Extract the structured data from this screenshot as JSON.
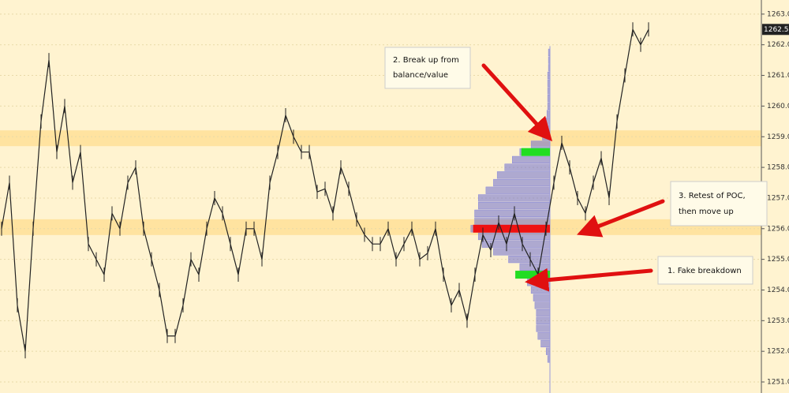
{
  "chart_data": {
    "type": "line",
    "series": [
      {
        "name": "Price",
        "color": "#222222",
        "values": [
          1256.0,
          1257.5,
          1253.5,
          1252.0,
          1256.0,
          1259.5,
          1261.5,
          1258.5,
          1260.0,
          1257.5,
          1258.5,
          1255.5,
          1255.0,
          1254.5,
          1256.5,
          1256.0,
          1257.5,
          1258.0,
          1256.0,
          1255.0,
          1254.0,
          1252.5,
          1252.5,
          1253.5,
          1255.0,
          1254.5,
          1256.0,
          1257.0,
          1256.5,
          1255.5,
          1254.5,
          1256.0,
          1256.0,
          1255.0,
          1257.5,
          1258.5,
          1259.7,
          1259.0,
          1258.5,
          1258.5,
          1257.2,
          1257.3,
          1256.5,
          1258.0,
          1257.3,
          1256.3,
          1255.8,
          1255.5,
          1255.5,
          1256.0,
          1255.0,
          1255.5,
          1256.0,
          1255.0,
          1255.2,
          1256.0,
          1254.5,
          1253.5,
          1254.0,
          1253.0,
          1254.5,
          1255.8,
          1255.3,
          1256.2,
          1255.5,
          1256.5,
          1255.5,
          1255.0,
          1254.5,
          1256.0,
          1257.5,
          1258.8,
          1258.0,
          1257.0,
          1256.5,
          1257.5,
          1258.3,
          1257.0,
          1259.5,
          1261.0,
          1262.5,
          1262.0,
          1262.5
        ]
      }
    ],
    "ylim": [
      1250.64,
      1263.46
    ],
    "yticks": [
      {
        "value": 1251,
        "label": "1251.0"
      },
      {
        "value": 1252,
        "label": "1252.0"
      },
      {
        "value": 1253,
        "label": "1253.0"
      },
      {
        "value": 1254,
        "label": "1254.0"
      },
      {
        "value": 1255,
        "label": "1255.0"
      },
      {
        "value": 1256,
        "label": "1256.0"
      },
      {
        "value": 1257,
        "label": "1257.0"
      },
      {
        "value": 1258,
        "label": "1258.0"
      },
      {
        "value": 1259,
        "label": "1259.0"
      },
      {
        "value": 1260,
        "label": "1260.0"
      },
      {
        "value": 1261,
        "label": "1261.0"
      },
      {
        "value": 1262,
        "label": "1262.0"
      },
      {
        "value": 1263,
        "label": "1263.0"
      }
    ],
    "grid": true,
    "last_price": {
      "value": 1262.5,
      "label": "1262.50"
    },
    "bands": [
      {
        "value": 1258.95,
        "color": "#ffe3a0"
      },
      {
        "value": 1256.05,
        "color": "#ffe3a0"
      }
    ],
    "profile": {
      "color": "#6b6bd0",
      "levels": [
        1261.75,
        1261.5,
        1261.25,
        1261.0,
        1260.75,
        1260.5,
        1260.25,
        1260.0,
        1259.75,
        1259.5,
        1259.25,
        1259.0,
        1258.75,
        1258.5,
        1258.25,
        1258.0,
        1257.75,
        1257.5,
        1257.25,
        1257.0,
        1256.75,
        1256.5,
        1256.25,
        1256.0,
        1255.75,
        1255.5,
        1255.25,
        1255.0,
        1254.75,
        1254.5,
        1254.25,
        1254.0,
        1253.75,
        1253.5,
        1253.25,
        1253.0,
        1252.75,
        1252.5,
        1252.25,
        1252.0,
        1251.75
      ],
      "volumes": [
        2,
        2,
        2,
        3,
        3,
        3,
        3,
        3,
        4,
        5,
        7,
        10,
        25,
        40,
        50,
        60,
        70,
        75,
        85,
        95,
        95,
        100,
        100,
        105,
        95,
        90,
        75,
        55,
        40,
        35,
        30,
        25,
        22,
        20,
        18,
        18,
        18,
        16,
        12,
        5,
        3
      ],
      "xlim": [
        0,
        110
      ]
    },
    "key_levels": [
      {
        "value": 1258.5,
        "size": 38,
        "color": "#22dd22"
      },
      {
        "value": 1256.0,
        "size": 102,
        "color": "#ee1111"
      },
      {
        "value": 1254.5,
        "size": 46,
        "color": "#22dd22"
      }
    ],
    "annotations": [
      {
        "lines": [
          "2. Break up from",
          "balance/value"
        ]
      },
      {
        "lines": [
          "3. Retest of POC,",
          "then move up"
        ]
      },
      {
        "lines": [
          "1. Fake breakdown"
        ]
      }
    ]
  }
}
